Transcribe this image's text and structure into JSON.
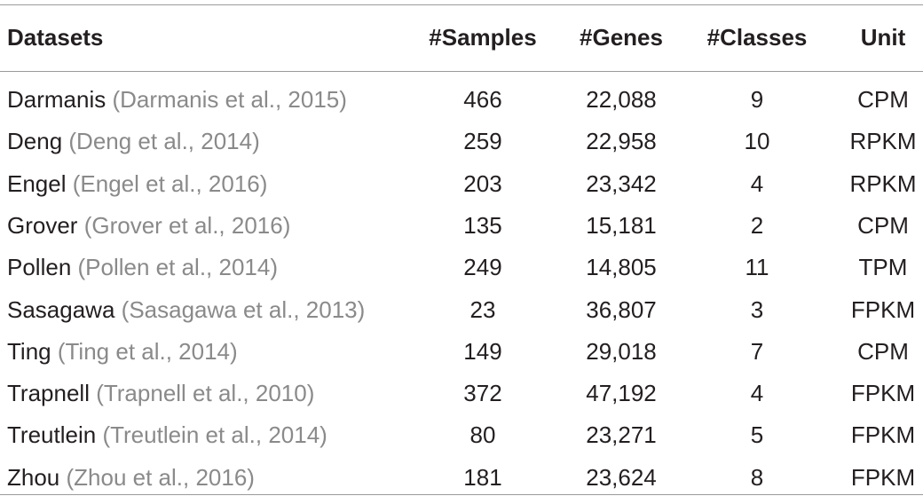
{
  "table": {
    "header": [
      "Datasets",
      "#Samples",
      "#Genes",
      "#Classes",
      "Unit"
    ],
    "rows": [
      [
        {
          "name": "Darmanis",
          "citation": "(Darmanis et al., 2015)"
        },
        "466",
        "22,088",
        "9",
        "CPM"
      ],
      [
        {
          "name": "Deng",
          "citation": "(Deng et al., 2014)"
        },
        "259",
        "22,958",
        "10",
        "RPKM"
      ],
      [
        {
          "name": "Engel",
          "citation": "(Engel et al., 2016)"
        },
        "203",
        "23,342",
        "4",
        "RPKM"
      ],
      [
        {
          "name": "Grover",
          "citation": "(Grover et al., 2016)"
        },
        "135",
        "15,181",
        "2",
        "CPM"
      ],
      [
        {
          "name": "Pollen",
          "citation": "(Pollen et al., 2014)"
        },
        "249",
        "14,805",
        "11",
        "TPM"
      ],
      [
        {
          "name": "Sasagawa",
          "citation": "(Sasagawa et al., 2013)"
        },
        "23",
        "36,807",
        "3",
        "FPKM"
      ],
      [
        {
          "name": "Ting",
          "citation": "(Ting et al., 2014)"
        },
        "149",
        "29,018",
        "7",
        "CPM"
      ],
      [
        {
          "name": "Trapnell",
          "citation": "(Trapnell et al., 2010)"
        },
        "372",
        "47,192",
        "4",
        "FPKM"
      ],
      [
        {
          "name": "Treutlein",
          "citation": "(Treutlein et al., 2014)"
        },
        "80",
        "23,271",
        "5",
        "FPKM"
      ],
      [
        {
          "name": "Zhou",
          "citation": "(Zhou et al., 2016)"
        },
        "181",
        "23,624",
        "8",
        "FPKM"
      ]
    ]
  }
}
